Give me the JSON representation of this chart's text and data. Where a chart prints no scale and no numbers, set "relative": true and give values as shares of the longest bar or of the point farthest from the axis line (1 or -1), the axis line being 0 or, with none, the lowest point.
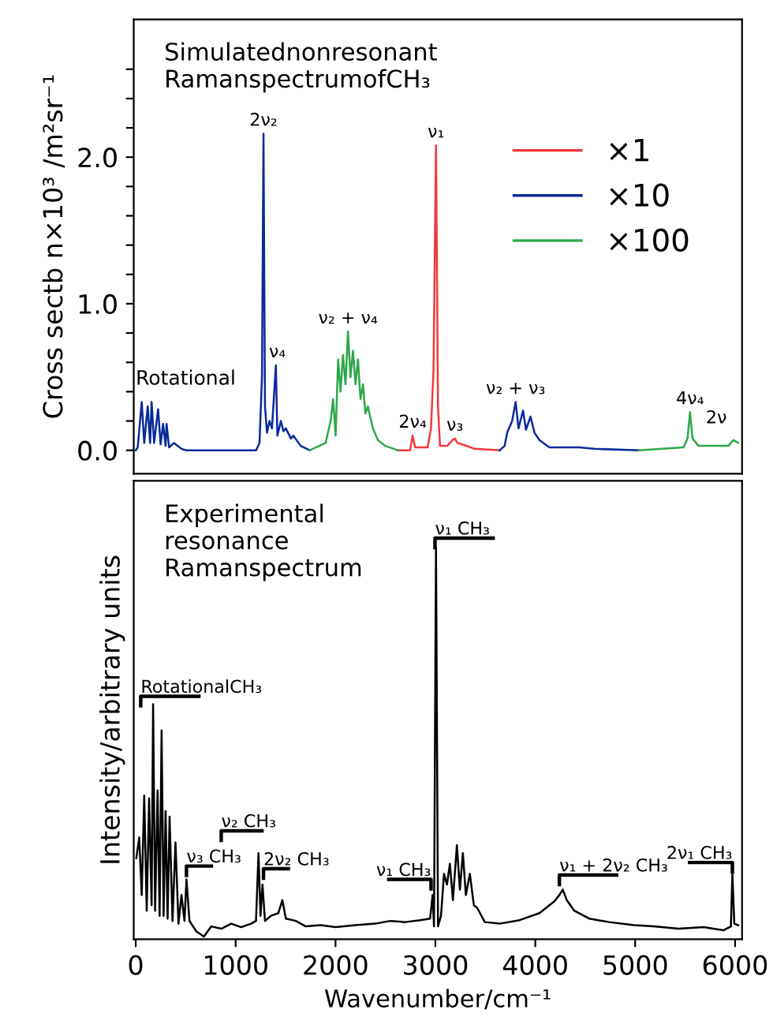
{
  "chart_data": [
    {
      "type": "line",
      "title": "Simulatednonresonant\nRamanspectrumofCH₃",
      "ylabel": "Cross sectb n×10³ /m²sr⁻¹",
      "xlim": [
        -20,
        6070
      ],
      "ylim": [
        -0.16,
        2.94
      ],
      "yticks": [
        {
          "value": 0,
          "label": "0.0"
        },
        {
          "value": 0.2,
          "label": null
        },
        {
          "value": 0.4,
          "label": null
        },
        {
          "value": 0.6,
          "label": null
        },
        {
          "value": 0.8,
          "label": null
        },
        {
          "value": 1,
          "label": "1.0"
        },
        {
          "value": 1.2,
          "label": null
        },
        {
          "value": 1.4,
          "label": null
        },
        {
          "value": 1.6,
          "label": null
        },
        {
          "value": 1.8,
          "label": null
        },
        {
          "value": 2,
          "label": "2.0"
        },
        {
          "value": 2.2,
          "label": null
        },
        {
          "value": 2.4,
          "label": null
        },
        {
          "value": 2.6,
          "label": null
        }
      ],
      "tick_labels": "y",
      "legend": "top right",
      "grid": false,
      "marker": "none",
      "line_style": "solid",
      "series": [
        {
          "name": "×1",
          "color": "#f0393d",
          "x": [
            2623,
            2747,
            2772,
            2797,
            2922,
            2956,
            2981,
            3006,
            3026,
            3046,
            3120,
            3170,
            3195,
            3220,
            3270,
            3394,
            3643
          ],
          "values": [
            0.0,
            0.0,
            0.1,
            0.02,
            0.02,
            0.15,
            0.55,
            2.08,
            0.3,
            0.03,
            0.03,
            0.07,
            0.08,
            0.05,
            0.04,
            0.01,
            0.0
          ]
        },
        {
          "name": "×10",
          "color": "#0a2a99",
          "x": [
            0,
            20,
            60,
            85,
            120,
            144,
            159,
            184,
            224,
            249,
            274,
            299,
            309,
            334,
            383,
            458,
            508,
            1205,
            1239,
            1264,
            1279,
            1294,
            1314,
            1339,
            1364,
            1403,
            1418,
            1453,
            1478,
            1503,
            1553,
            1578,
            1652,
            1742,
            2700,
            3600,
            3643,
            3693,
            3718,
            3768,
            3803,
            3832,
            3877,
            3907,
            3952,
            3992,
            4041,
            4141,
            4440,
            4589,
            5037
          ],
          "values": [
            0.0,
            0.02,
            0.33,
            0.05,
            0.3,
            0.05,
            0.33,
            0.05,
            0.28,
            0.04,
            0.18,
            0.03,
            0.18,
            0.02,
            0.05,
            0.01,
            0.0,
            0.0,
            0.05,
            0.5,
            2.16,
            0.3,
            0.12,
            0.2,
            0.15,
            0.58,
            0.1,
            0.2,
            0.13,
            0.15,
            0.08,
            0.1,
            0.03,
            0.0,
            null,
            null,
            0.0,
            0.03,
            0.12,
            0.2,
            0.33,
            0.15,
            0.27,
            0.14,
            0.23,
            0.12,
            0.07,
            0.02,
            0.02,
            0.01,
            0.0
          ]
        },
        {
          "name": "×100",
          "color": "#2ea84a",
          "x": [
            1742,
            1901,
            1951,
            1976,
            2001,
            2026,
            2050,
            2075,
            2100,
            2125,
            2150,
            2175,
            2200,
            2225,
            2250,
            2275,
            2299,
            2324,
            2374,
            2424,
            2498,
            2623,
            4000,
            5000,
            5037,
            5484,
            5524,
            5549,
            5574,
            5634,
            5783,
            5933,
            5983,
            6032
          ],
          "values": [
            0.0,
            0.05,
            0.2,
            0.35,
            0.1,
            0.62,
            0.4,
            0.65,
            0.45,
            0.81,
            0.5,
            0.68,
            0.45,
            0.62,
            0.35,
            0.45,
            0.25,
            0.3,
            0.15,
            0.07,
            0.03,
            0.0,
            null,
            null,
            0.0,
            0.02,
            0.08,
            0.26,
            0.08,
            0.03,
            0.03,
            0.03,
            0.07,
            0.05
          ]
        }
      ],
      "annotations": [
        "Rotational",
        {
          "text": "2ν₂",
          "x": 1279,
          "y": 2.16
        },
        {
          "text": "ν₄",
          "x": 1418,
          "y": 0.58
        },
        {
          "text": "ν₂ + ν₄",
          "x": 2125,
          "y": 0.81
        },
        {
          "text": "2ν₄",
          "x": 2772,
          "y": 0.1
        },
        {
          "text": "ν₁",
          "x": 3006,
          "y": 2.08
        },
        {
          "text": "ν₃",
          "x": 3195,
          "y": 0.08
        },
        {
          "text": "ν₂ + ν₃",
          "x": 3803,
          "y": 0.33
        },
        {
          "text": "4ν₄",
          "x": 5549,
          "y": 0.26
        },
        {
          "text": "2ν",
          "x": 5983,
          "y": 0.07
        }
      ]
    },
    {
      "type": "line",
      "title": "Experimental\nresonance\nRamanspectrum",
      "xlabel": "Wavenumber/cm⁻¹",
      "ylabel": "Intensity/arbitrary units",
      "relative": true,
      "xlim": [
        -20,
        6070
      ],
      "xticks": [
        0,
        1000,
        2000,
        3000,
        4000,
        5000,
        6000
      ],
      "tick_labels": "x",
      "grid": false,
      "marker": "none",
      "line_style": "solid",
      "series": [
        {
          "color": "#000000",
          "x": [
            6,
            35,
            60,
            85,
            110,
            134,
            159,
            174,
            194,
            219,
            239,
            259,
            279,
            299,
            319,
            339,
            368,
            398,
            428,
            458,
            488,
            508,
            538,
            607,
            682,
            757,
            856,
            956,
            1055,
            1155,
            1204,
            1229,
            1249,
            1269,
            1294,
            1354,
            1428,
            1468,
            1503,
            1603,
            1702,
            1851,
            2001,
            2200,
            2399,
            2548,
            2698,
            2847,
            2947,
            2972,
            2986,
            3006,
            3026,
            3056,
            3086,
            3116,
            3145,
            3175,
            3215,
            3245,
            3275,
            3305,
            3345,
            3385,
            3419,
            3494,
            3643,
            3843,
            4042,
            4191,
            4241,
            4275,
            4315,
            4390,
            4539,
            4738,
            4987,
            5186,
            5435,
            5684,
            5883,
            5958,
            5973,
            5992,
            6032
          ],
          "values": [
            0.207,
            0.26,
            0.113,
            0.367,
            0.073,
            0.36,
            0.087,
            0.6,
            0.073,
            0.38,
            0.06,
            0.533,
            0.06,
            0.327,
            0.053,
            0.313,
            0.047,
            0.247,
            0.04,
            0.113,
            0.047,
            0.153,
            0.047,
            0.02,
            0.007,
            0.033,
            0.027,
            0.04,
            0.031,
            0.04,
            0.047,
            0.22,
            0.06,
            0.14,
            0.047,
            0.06,
            0.067,
            0.1,
            0.053,
            0.047,
            0.033,
            0.036,
            0.031,
            0.036,
            0.04,
            0.047,
            0.044,
            0.049,
            0.053,
            0.113,
            0.033,
            1.0,
            0.033,
            0.06,
            0.167,
            0.14,
            0.193,
            0.1,
            0.24,
            0.127,
            0.22,
            0.113,
            0.167,
            0.087,
            0.08,
            0.044,
            0.04,
            0.049,
            0.067,
            0.097,
            0.113,
            0.127,
            0.1,
            0.073,
            0.053,
            0.044,
            0.036,
            0.033,
            0.027,
            0.031,
            0.023,
            0.033,
            0.167,
            0.04,
            0.036
          ]
        }
      ],
      "annotations": [
        "RotationalCH₃",
        "ν₃ CH₃",
        "ν₂ CH₃",
        "2ν₂ CH₃",
        "ν₁ CH₃",
        "ν₁ CH₃",
        "ν₁ + 2ν₂ CH₃",
        "2ν₁ CH₃"
      ]
    }
  ]
}
